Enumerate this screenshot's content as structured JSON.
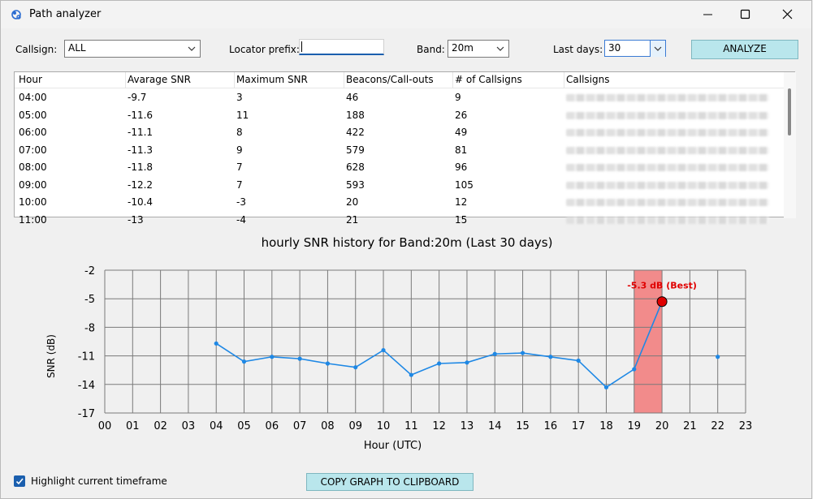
{
  "window": {
    "title": "Path analyzer"
  },
  "filters": {
    "callsign_label": "Callsign:",
    "callsign_value": "ALL",
    "locator_label": "Locator prefix:",
    "locator_value": "",
    "band_label": "Band:",
    "band_value": "20m",
    "days_label": "Last days:",
    "days_value": "30",
    "analyze_label": "ANALYZE"
  },
  "table": {
    "columns": [
      "Hour",
      "Avarage SNR",
      "Maximum SNR",
      "Beacons/Call-outs",
      "# of Callsigns",
      "Callsigns"
    ],
    "rows": [
      [
        "04:00",
        "-9.7",
        "3",
        "46",
        "9"
      ],
      [
        "05:00",
        "-11.6",
        "11",
        "188",
        "26"
      ],
      [
        "06:00",
        "-11.1",
        "8",
        "422",
        "49"
      ],
      [
        "07:00",
        "-11.3",
        "9",
        "579",
        "81"
      ],
      [
        "08:00",
        "-11.8",
        "7",
        "628",
        "96"
      ],
      [
        "09:00",
        "-12.2",
        "7",
        "593",
        "105"
      ],
      [
        "10:00",
        "-10.4",
        "-3",
        "20",
        "12"
      ],
      [
        "11:00",
        "-13",
        "-4",
        "21",
        "15"
      ]
    ]
  },
  "chart_data": {
    "type": "line",
    "title": "hourly SNR history for Band:20m (Last 30 days)",
    "xlabel": "Hour (UTC)",
    "ylabel": "SNR (dB)",
    "x_ticks": [
      "00",
      "01",
      "02",
      "03",
      "04",
      "05",
      "06",
      "07",
      "08",
      "09",
      "10",
      "11",
      "12",
      "13",
      "14",
      "15",
      "16",
      "17",
      "18",
      "19",
      "20",
      "21",
      "22",
      "23"
    ],
    "y_ticks": [
      -2,
      -5,
      -8,
      -11,
      -14,
      -17
    ],
    "ylim": [
      -17,
      -2
    ],
    "xlim": [
      0,
      23
    ],
    "grid": true,
    "series": [
      {
        "segments": [
          [
            [
              4,
              -9.7
            ],
            [
              5,
              -11.6
            ],
            [
              6,
              -11.1
            ],
            [
              7,
              -11.3
            ],
            [
              8,
              -11.8
            ],
            [
              9,
              -12.2
            ],
            [
              10,
              -10.4
            ],
            [
              11,
              -13
            ],
            [
              12,
              -11.8
            ],
            [
              13,
              -11.7
            ],
            [
              14,
              -10.8
            ],
            [
              15,
              -10.7
            ],
            [
              16,
              -11.1
            ],
            [
              17,
              -11.5
            ],
            [
              18,
              -14.3
            ],
            [
              19,
              -12.4
            ],
            [
              20,
              -5.3
            ]
          ],
          [
            [
              22,
              -11.1
            ]
          ]
        ]
      }
    ],
    "highlight_range": [
      19,
      20
    ],
    "best_point": {
      "x": 20,
      "y": -5.3,
      "label": "-5.3 dB (Best)"
    },
    "colors": {
      "line": "#1e88e5",
      "highlight": "#f28b8b",
      "best": "#e00000"
    }
  },
  "footer": {
    "highlight_label": "Highlight current timeframe",
    "highlight_checked": true,
    "copy_label": "COPY GRAPH TO CLIPBOARD"
  }
}
